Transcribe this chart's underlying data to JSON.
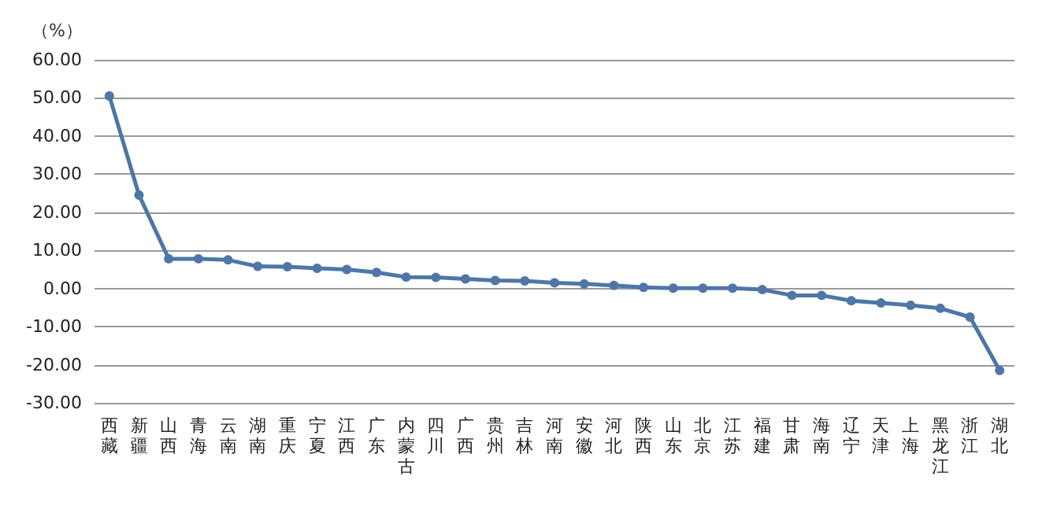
{
  "chart_data": {
    "type": "line",
    "ylabel": "（%）",
    "categories": [
      "西藏",
      "新疆",
      "山西",
      "青海",
      "云南",
      "湖南",
      "重庆",
      "宁夏",
      "江西",
      "广东",
      "内蒙古",
      "四川",
      "广西",
      "贵州",
      "吉林",
      "河南",
      "安徽",
      "河北",
      "陕西",
      "山东",
      "北京",
      "江苏",
      "福建",
      "甘肃",
      "海南",
      "辽宁",
      "天津",
      "上海",
      "黑龙江",
      "浙江",
      "湖北"
    ],
    "series": [
      {
        "color": "#4e76a6",
        "values": [
          50.5,
          24.5,
          7.8,
          7.8,
          7.5,
          5.8,
          5.7,
          5.3,
          5.0,
          4.2,
          3.0,
          2.9,
          2.5,
          2.1,
          2.0,
          1.5,
          1.2,
          0.8,
          0.3,
          0.1,
          0.1,
          0.1,
          -0.3,
          -1.8,
          -1.8,
          -3.2,
          -3.8,
          -4.4,
          -5.2,
          -7.5,
          -21.5
        ]
      }
    ],
    "ylim": [
      -30,
      60
    ],
    "yticks": [
      {
        "value": -30,
        "label": "-30.00"
      },
      {
        "value": -20,
        "label": "-20.00"
      },
      {
        "value": -10,
        "label": "-10.00"
      },
      {
        "value": 0,
        "label": "0.00"
      },
      {
        "value": 10,
        "label": "10.00"
      },
      {
        "value": 20,
        "label": "20.00"
      },
      {
        "value": 30,
        "label": "30.00"
      },
      {
        "value": 40,
        "label": "40.00"
      },
      {
        "value": 50,
        "label": "50.00"
      },
      {
        "value": 60,
        "label": "60.00"
      }
    ],
    "grid": "y",
    "marker": "circle",
    "line_style": "solid"
  }
}
